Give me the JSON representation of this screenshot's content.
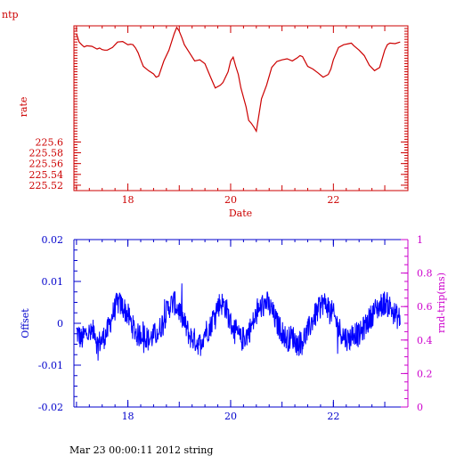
{
  "page": {
    "app_label": "ntp",
    "footer": "Mar 23 00:00:11 2012 string"
  },
  "colors": {
    "rate": "#cc0000",
    "offset": "#0000ff",
    "rtt": "#cc00cc",
    "text": "#000000"
  },
  "chart_data": [
    {
      "type": "line",
      "xlabel": "Date",
      "ylabel": "rate",
      "xlim": [
        16.95,
        23.45
      ],
      "ylim": [
        225.51,
        225.815
      ],
      "x_ticks": [
        18,
        20,
        22
      ],
      "y_ticks": [
        225.52,
        225.54,
        225.56,
        225.58,
        225.6
      ],
      "x_tick_labels": [
        "18",
        "20",
        "22"
      ],
      "y_tick_labels": [
        "225.52",
        "225.54",
        "225.56",
        "225.58",
        "225.6"
      ],
      "series": [
        {
          "x": [
            17.0,
            17.05,
            17.1,
            17.15,
            17.2,
            17.3,
            17.4,
            17.45,
            17.5,
            17.55,
            17.6,
            17.7,
            17.8,
            17.9,
            18.0,
            18.05,
            18.1,
            18.15,
            18.2,
            18.25,
            18.3,
            18.4,
            18.5,
            18.55,
            18.6,
            18.7,
            18.8,
            18.9,
            18.95,
            19.0,
            19.05,
            19.1,
            19.2,
            19.3,
            19.4,
            19.5,
            19.6,
            19.7,
            19.8,
            19.85,
            19.9,
            19.95,
            20.0,
            20.05,
            20.1,
            20.15,
            20.2,
            20.3,
            20.35,
            20.4,
            20.45,
            20.5,
            20.6,
            20.7,
            20.8,
            20.9,
            21.0,
            21.1,
            21.2,
            21.3,
            21.35,
            21.4,
            21.5,
            21.6,
            21.7,
            21.8,
            21.9,
            21.95,
            22.0,
            22.1,
            22.2,
            22.3,
            22.35,
            22.4,
            22.5,
            22.6,
            22.7,
            22.8,
            22.9,
            23.0,
            23.05,
            23.1,
            23.2,
            23.3
          ],
          "y": [
            225.8,
            225.785,
            225.78,
            225.776,
            225.778,
            225.777,
            225.772,
            225.774,
            225.771,
            225.77,
            225.77,
            225.775,
            225.785,
            225.786,
            225.78,
            225.781,
            225.78,
            225.774,
            225.765,
            225.752,
            225.74,
            225.732,
            225.726,
            225.72,
            225.722,
            225.75,
            225.77,
            225.8,
            225.812,
            225.805,
            225.793,
            225.78,
            225.765,
            225.75,
            225.752,
            225.745,
            225.722,
            225.7,
            225.705,
            225.71,
            225.72,
            225.73,
            225.75,
            225.757,
            225.74,
            225.725,
            225.7,
            225.665,
            225.64,
            225.635,
            225.628,
            225.62,
            225.68,
            225.705,
            225.738,
            225.749,
            225.752,
            225.754,
            225.75,
            225.756,
            225.76,
            225.758,
            225.74,
            225.735,
            225.728,
            225.72,
            225.725,
            225.735,
            225.752,
            225.775,
            225.78,
            225.782,
            225.783,
            225.778,
            225.77,
            225.76,
            225.742,
            225.732,
            225.738,
            225.77,
            225.78,
            225.783,
            225.782,
            225.785
          ]
        }
      ]
    },
    {
      "type": "line",
      "xlabel": "",
      "ylabel": "Offset",
      "y2label": "rnd-trip(ms)",
      "xlim": [
        16.95,
        23.45
      ],
      "ylim": [
        -0.02,
        0.02
      ],
      "y2lim": [
        0,
        1
      ],
      "x_ticks": [
        18,
        20,
        22
      ],
      "y_ticks": [
        -0.02,
        -0.01,
        0,
        0.01,
        0.02
      ],
      "y2_ticks": [
        0,
        0.2,
        0.4,
        0.6,
        0.8,
        1
      ],
      "x_tick_labels": [
        "18",
        "20",
        "22"
      ],
      "y_tick_labels": [
        "-0.02",
        "-0.01",
        "0",
        "0.01",
        "0.02"
      ],
      "y2_tick_labels": [
        "0",
        "0.2",
        "0.4",
        "0.6",
        "0.8",
        "1"
      ],
      "series": [
        {
          "x": [
            17.0,
            17.05,
            17.1,
            17.2,
            17.3,
            17.35,
            17.4,
            17.5,
            17.6,
            17.7,
            17.8,
            17.9,
            18.0,
            18.1,
            18.2,
            18.3,
            18.4,
            18.5,
            18.6,
            18.7,
            18.8,
            18.9,
            19.0,
            19.1,
            19.2,
            19.3,
            19.4,
            19.5,
            19.6,
            19.7,
            19.8,
            19.9,
            20.0,
            20.1,
            20.2,
            20.3,
            20.4,
            20.5,
            20.6,
            20.7,
            20.8,
            20.9,
            21.0,
            21.1,
            21.2,
            21.3,
            21.4,
            21.5,
            21.6,
            21.7,
            21.8,
            21.9,
            22.0,
            22.1,
            22.2,
            22.3,
            22.4,
            22.5,
            22.6,
            22.7,
            22.8,
            22.9,
            23.0,
            23.1,
            23.2,
            23.3
          ],
          "y": [
            -0.002,
            -0.003,
            -0.004,
            -0.002,
            -0.003,
            -0.001,
            -0.005,
            -0.004,
            -0.002,
            0.002,
            0.005,
            0.004,
            0.002,
            -0.001,
            -0.003,
            -0.002,
            -0.004,
            -0.003,
            -0.002,
            0.001,
            0.004,
            0.005,
            0.003,
            0.0,
            -0.003,
            -0.004,
            -0.005,
            -0.002,
            -0.001,
            0.003,
            0.005,
            0.004,
            0.0,
            -0.002,
            -0.004,
            -0.003,
            -0.001,
            0.002,
            0.004,
            0.005,
            0.003,
            0.0,
            -0.002,
            -0.004,
            -0.003,
            -0.005,
            -0.004,
            -0.002,
            0.001,
            0.003,
            0.005,
            0.004,
            0.002,
            -0.001,
            -0.003,
            -0.004,
            -0.002,
            -0.003,
            -0.001,
            0.001,
            0.003,
            0.004,
            0.005,
            0.004,
            0.002,
            0.001
          ],
          "noise": 0.003
        }
      ]
    }
  ]
}
